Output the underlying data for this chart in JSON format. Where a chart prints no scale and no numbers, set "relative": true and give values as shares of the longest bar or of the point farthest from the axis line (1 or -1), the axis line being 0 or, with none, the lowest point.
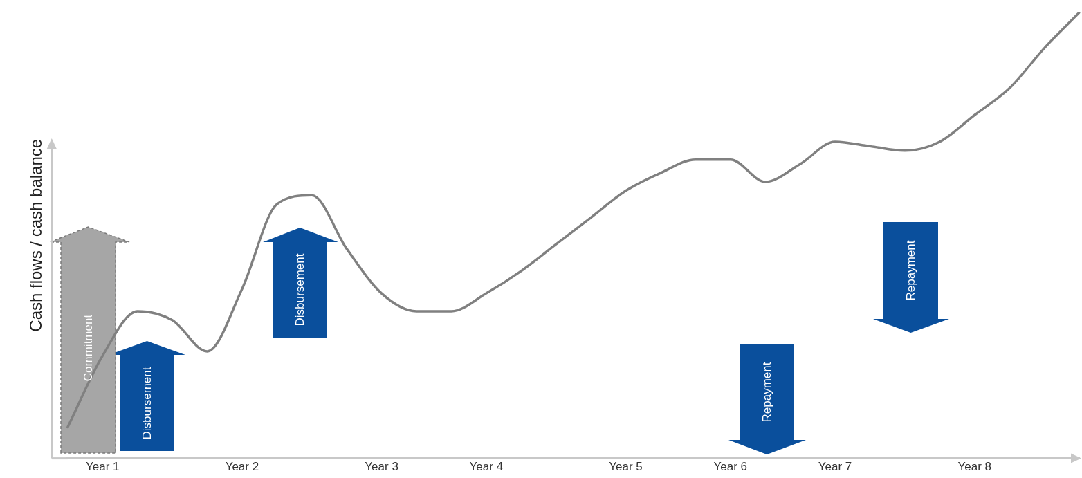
{
  "chart_data": {
    "type": "line",
    "relative": true,
    "ylabel": "Cash flows / cash balance",
    "categories": [
      null,
      "Year 1",
      null,
      null,
      null,
      "Year 2",
      null,
      null,
      null,
      "Year 3",
      null,
      null,
      "Year 4",
      null,
      null,
      null,
      "Year 5",
      null,
      null,
      "Year 6",
      null,
      null,
      "Year 7",
      null,
      null,
      null,
      "Year 8",
      null,
      null,
      null
    ],
    "series": [
      {
        "color": "#808080",
        "values": [
          0.07,
          0.23,
          0.33,
          0.31,
          0.24,
          0.38,
          0.57,
          0.59,
          0.47,
          0.37,
          0.33,
          0.33,
          0.37,
          0.42,
          0.48,
          0.54,
          0.6,
          0.64,
          0.67,
          0.67,
          0.62,
          0.66,
          0.71,
          0.7,
          0.69,
          0.71,
          0.77,
          0.83,
          0.92,
          1.0
        ]
      }
    ],
    "tick_labels": "x",
    "grid": false,
    "legend": false,
    "marker": "none",
    "line_style": "solid",
    "annotations": [
      "Commitment",
      "Disbursement",
      "Disbursement",
      "Repayment",
      "Repayment"
    ]
  }
}
